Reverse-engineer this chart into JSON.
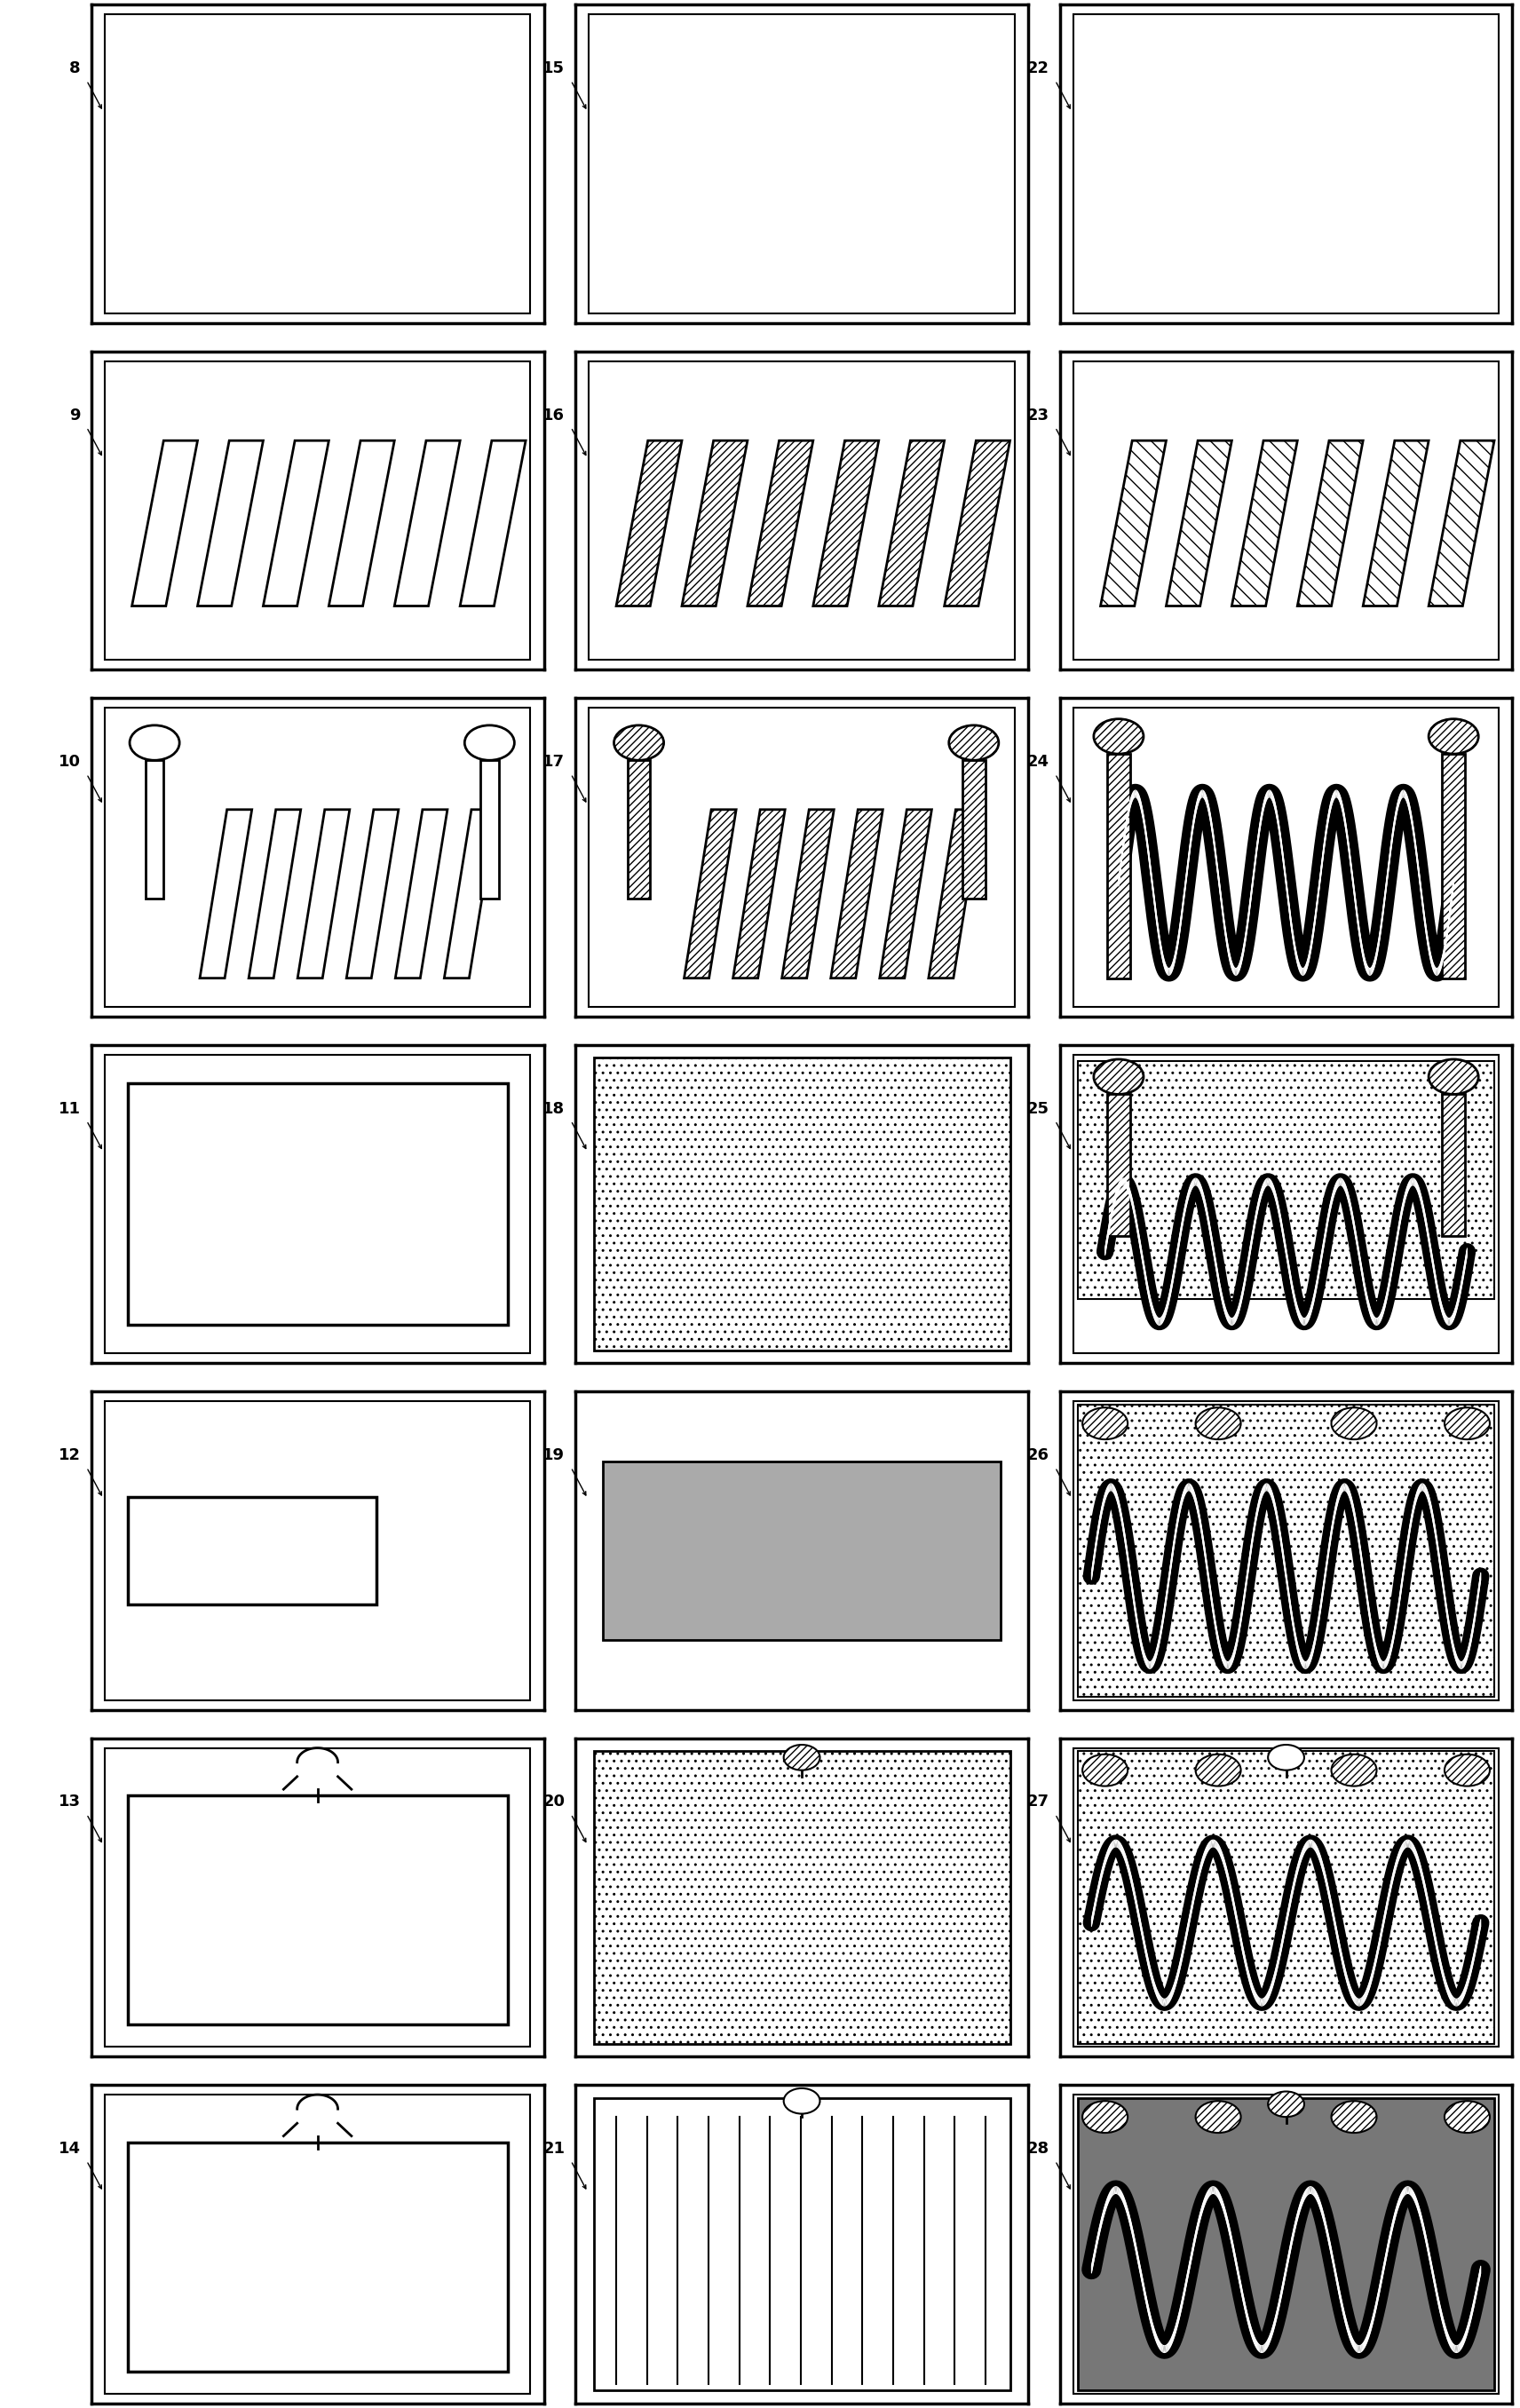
{
  "fig_width": 17.12,
  "fig_height": 27.12,
  "bg_color": "#ffffff",
  "panel_labels": [
    [
      "8",
      "15",
      "22"
    ],
    [
      "9",
      "16",
      "23"
    ],
    [
      "10",
      "17",
      "24"
    ],
    [
      "11",
      "18",
      "25"
    ],
    [
      "12",
      "19",
      "26"
    ],
    [
      "13",
      "20",
      "27"
    ],
    [
      "14",
      "21",
      "28"
    ]
  ],
  "n_rows": 7,
  "n_cols": 3,
  "label_fontsize": 13,
  "outer_lw": 2.5,
  "inner_lw": 1.5
}
